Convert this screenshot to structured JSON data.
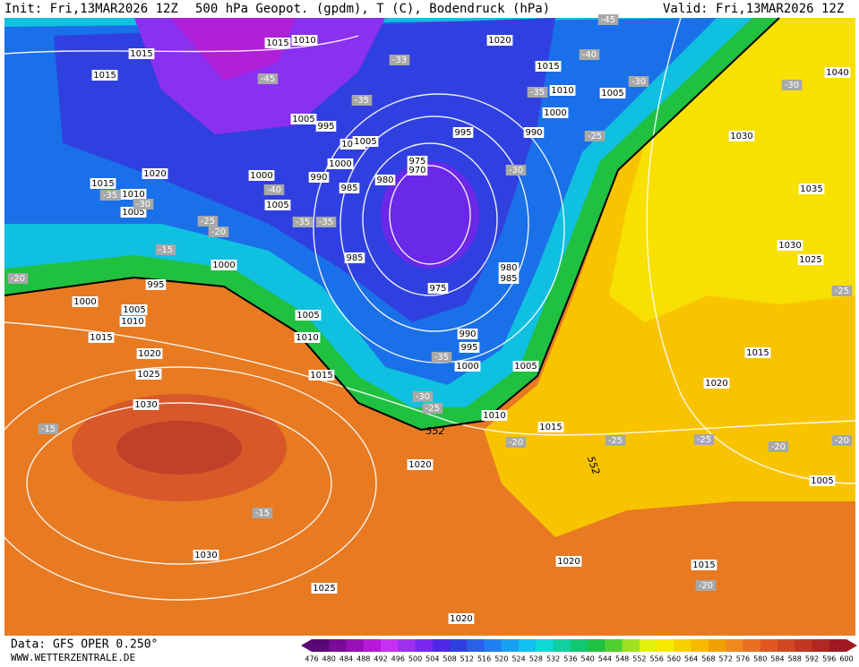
{
  "header": {
    "init": "Init: Fri,13MAR2026 12Z",
    "title": "500 hPa Geopot. (gpdm), T (C), Bodendruck (hPa)",
    "valid": "Valid: Fri,13MAR2026 12Z"
  },
  "footer": {
    "data": "Data: GFS OPER 0.250°",
    "site": "WWW.WETTERZENTRALE.DE"
  },
  "colorbar": {
    "labels": [
      476,
      480,
      484,
      488,
      492,
      496,
      500,
      504,
      508,
      512,
      516,
      520,
      524,
      528,
      532,
      536,
      540,
      544,
      548,
      552,
      556,
      560,
      564,
      568,
      572,
      576,
      580,
      584,
      588,
      592,
      596,
      600
    ],
    "colors": [
      "#5a0878",
      "#7a0a98",
      "#9a10b8",
      "#b818d8",
      "#c830f0",
      "#a030f0",
      "#7a28f0",
      "#5028e8",
      "#3040e0",
      "#2860e8",
      "#2080f0",
      "#18a0f0",
      "#10c0f0",
      "#10d8d8",
      "#10d0a0",
      "#10c870",
      "#20c040",
      "#50d030",
      "#a0e020",
      "#e0f010",
      "#f8e800",
      "#f8d000",
      "#f8b800",
      "#f0a000",
      "#f08820",
      "#e87020",
      "#e05820",
      "#d04820",
      "#c03820",
      "#b02820",
      "#a01820"
    ]
  },
  "map": {
    "isobar_labels": [
      1015,
      1015,
      1010,
      1020,
      1015,
      1010,
      1005,
      1040,
      1015,
      1000,
      1005,
      995,
      995,
      990,
      1030,
      1010,
      1005,
      1020,
      1000,
      975,
      970,
      990,
      985,
      980,
      1000,
      1035,
      1015,
      1010,
      1005,
      1005,
      1030,
      1025,
      985,
      1000,
      980,
      985,
      995,
      975,
      1000,
      1005,
      1010,
      1005,
      1010,
      990,
      995,
      1015,
      1020,
      1005,
      1000,
      1025,
      1015,
      1015,
      1020,
      1030,
      1010,
      1015,
      1020,
      1005,
      1030,
      1020,
      1015,
      1025,
      1020
    ],
    "temperature_labels": [
      -45,
      -33,
      -40,
      -45,
      -35,
      -30,
      -30,
      -35,
      -25,
      -30,
      -40,
      -35,
      -30,
      -25,
      -20,
      -35,
      -35,
      -15,
      -20,
      -25,
      -35,
      -30,
      -25,
      -20,
      -25,
      -25,
      -20,
      -20,
      -15,
      -15,
      -20
    ],
    "contour_labels": [
      552,
      552
    ]
  }
}
